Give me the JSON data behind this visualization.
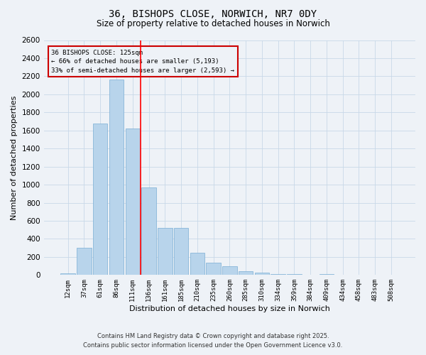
{
  "title_line1": "36, BISHOPS CLOSE, NORWICH, NR7 0DY",
  "title_line2": "Size of property relative to detached houses in Norwich",
  "xlabel": "Distribution of detached houses by size in Norwich",
  "ylabel": "Number of detached properties",
  "categories": [
    "12sqm",
    "37sqm",
    "61sqm",
    "86sqm",
    "111sqm",
    "136sqm",
    "161sqm",
    "185sqm",
    "210sqm",
    "235sqm",
    "260sqm",
    "285sqm",
    "310sqm",
    "334sqm",
    "359sqm",
    "384sqm",
    "409sqm",
    "434sqm",
    "458sqm",
    "483sqm",
    "508sqm"
  ],
  "values": [
    15,
    300,
    1680,
    2160,
    1620,
    970,
    520,
    520,
    245,
    135,
    95,
    45,
    25,
    10,
    8,
    5,
    10,
    5,
    3,
    5,
    3
  ],
  "bar_color": "#b8d4eb",
  "bar_edge_color": "#7aadd4",
  "property_line_x": 4.5,
  "annotation_box_text": "36 BISHOPS CLOSE: 125sqm\n← 66% of detached houses are smaller (5,193)\n33% of semi-detached houses are larger (2,593) →",
  "annotation_box_color": "#cc0000",
  "ylim": [
    0,
    2600
  ],
  "yticks": [
    0,
    200,
    400,
    600,
    800,
    1000,
    1200,
    1400,
    1600,
    1800,
    2000,
    2200,
    2400,
    2600
  ],
  "grid_color": "#c8d8e8",
  "background_color": "#eef2f7",
  "footer_line1": "Contains HM Land Registry data © Crown copyright and database right 2025.",
  "footer_line2": "Contains public sector information licensed under the Open Government Licence v3.0."
}
